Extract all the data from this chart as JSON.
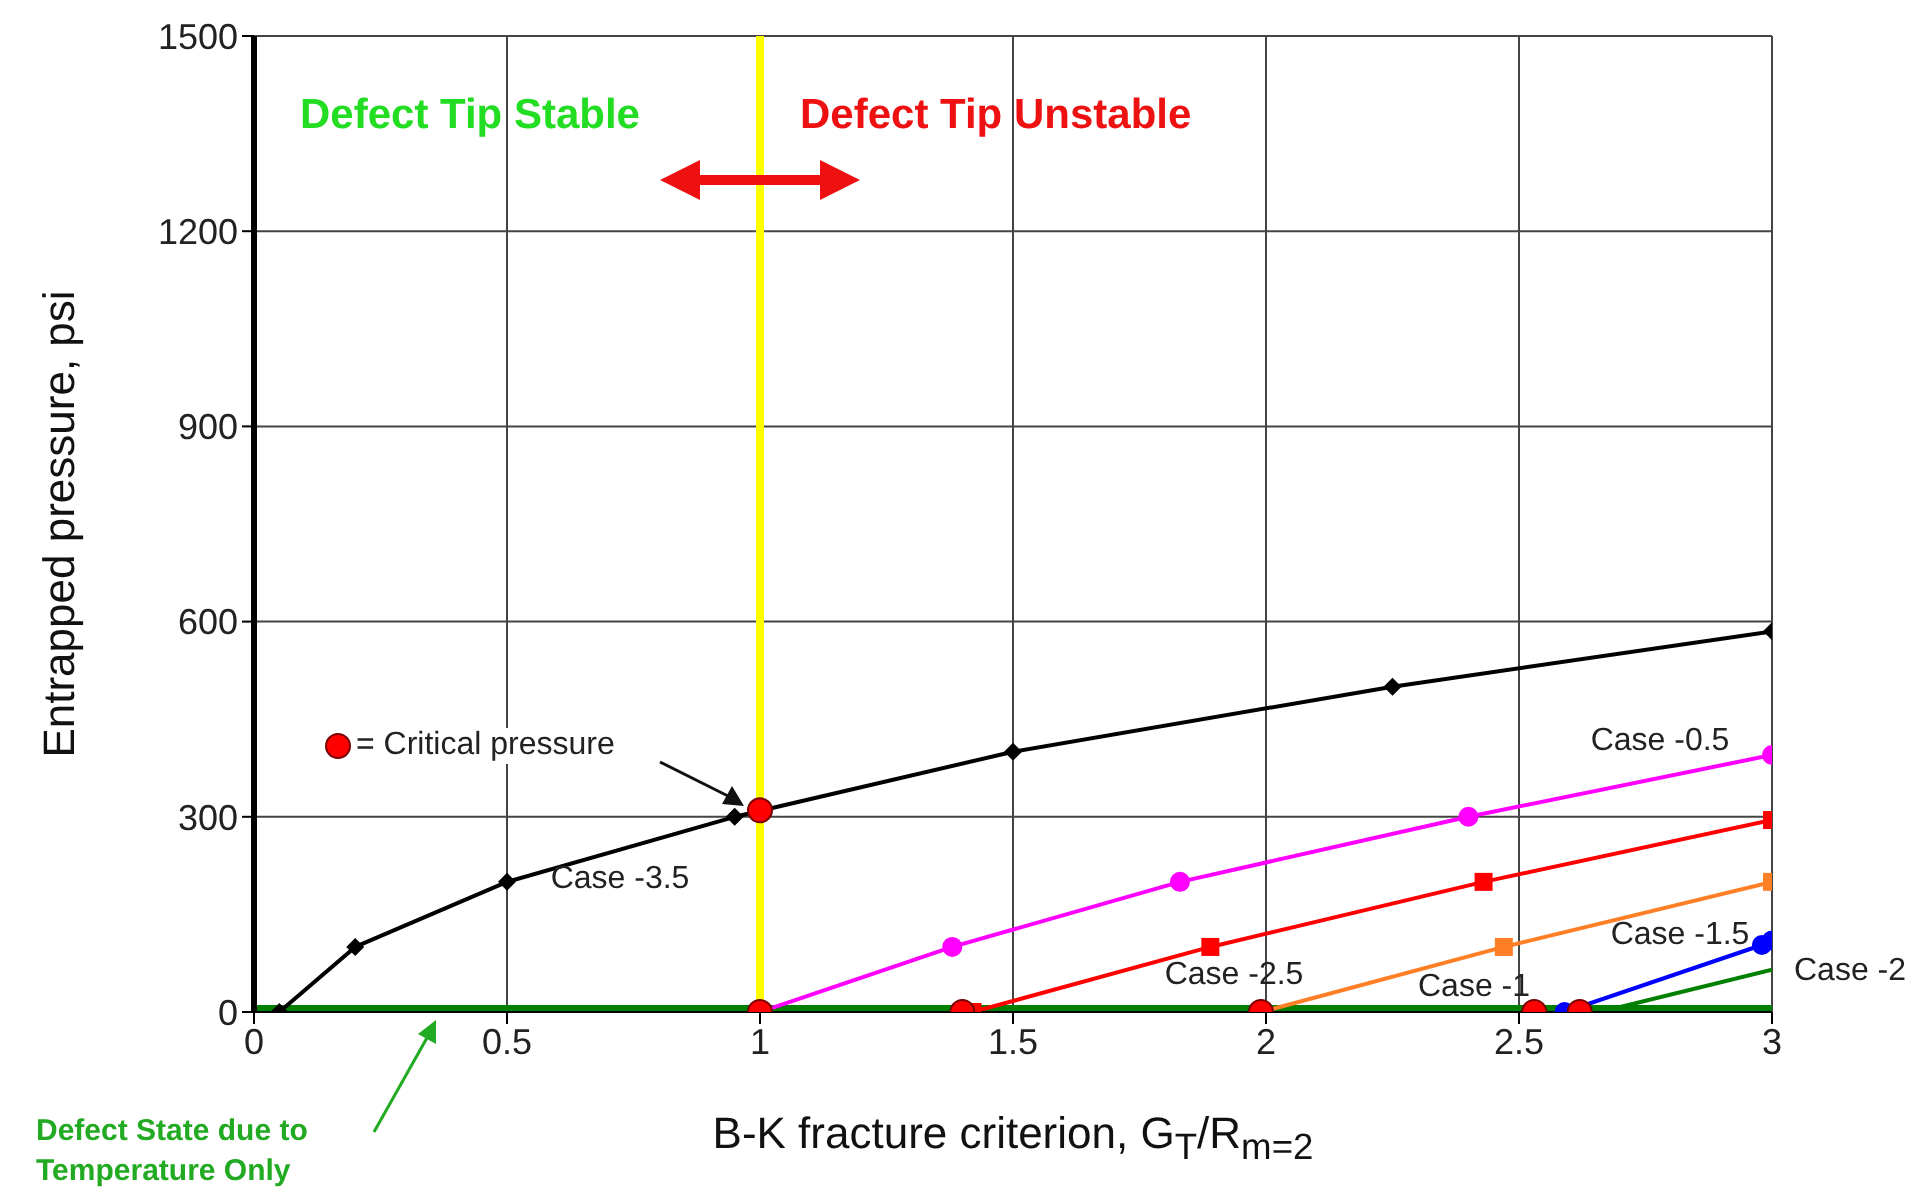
{
  "chart_data": {
    "type": "line",
    "xlabel": "B-K fracture criterion, G$_{T}$/R$_{m=2}$",
    "ylabel": "Entrapped pressure, psi",
    "xlim": [
      0,
      3
    ],
    "xticks": [
      0,
      0.5,
      1,
      1.5,
      2,
      2.5,
      3
    ],
    "ylim": [
      0,
      1500
    ],
    "yticks": [
      0,
      300,
      600,
      900,
      1200,
      1500
    ],
    "grid": true,
    "legend": "left",
    "series": [
      {
        "color": "#008000",
        "x": [
          0,
          3
        ],
        "values": [
          0,
          0
        ],
        "marker": "none"
      },
      {
        "name": "Case -3.5",
        "color": "#000000",
        "x": [
          0.05,
          0.2,
          0.5,
          0.95,
          1.5,
          2.25,
          3
        ],
        "values": [
          0,
          100,
          200,
          300,
          400,
          500,
          585
        ],
        "marker": "diamond"
      },
      {
        "name": "Case -0.5",
        "color": "#ff00ff",
        "x": [
          1,
          1.38,
          1.83,
          2.4,
          3
        ],
        "values": [
          0,
          100,
          200,
          300,
          395
        ],
        "marker": "circle"
      },
      {
        "name": "Case -2.5",
        "color": "#ff0000",
        "x": [
          1.42,
          1.89,
          2.43,
          3
        ],
        "values": [
          0,
          100,
          200,
          295
        ],
        "marker": "square"
      },
      {
        "name": "Case -1",
        "color": "#ff7f27",
        "x": [
          1.99,
          2.47,
          3
        ],
        "values": [
          0,
          100,
          200
        ],
        "marker": "square"
      },
      {
        "name": "Case -1.5",
        "color": "#0000ff",
        "x": [
          2.59,
          2.98,
          3
        ],
        "values": [
          0,
          103,
          110
        ],
        "marker": "circle"
      },
      {
        "name": "Case -2",
        "color": "#008000",
        "x": [
          2.66,
          3
        ],
        "values": [
          0,
          65
        ],
        "marker": "none"
      },
      {
        "type": "scatter",
        "name": "= Critical pressure",
        "color": "#ff0000",
        "x": [
          1,
          1,
          1.4,
          1.99,
          2.53,
          2.62
        ],
        "values": [
          310,
          0,
          0,
          0,
          0,
          0
        ],
        "marker": "circle"
      }
    ],
    "ref_lines": [
      {
        "axis": "x",
        "value": 1,
        "color": "#ffff00"
      }
    ],
    "annotations": [
      "Defect Tip Stable",
      "Defect Tip Unstable",
      "Defect State due to Temperature Only"
    ]
  }
}
